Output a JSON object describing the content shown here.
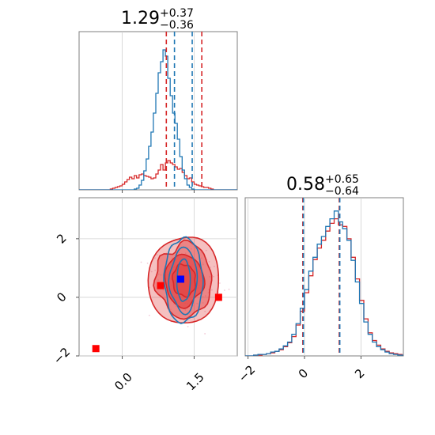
{
  "chart_data": [
    {
      "type": "histogram",
      "panel": "top-left (parameter 1 marginal)",
      "title": {
        "value": "1.29",
        "plus": "+0.37",
        "minus": "−0.36"
      },
      "xlim": [
        -0.9,
        2.4
      ],
      "bins": {
        "start": -0.9,
        "width": 0.05
      },
      "series": [
        {
          "color": "#d62728",
          "counts": [
            0,
            0,
            0,
            0,
            0,
            0,
            0,
            0,
            0,
            0,
            0,
            0,
            0,
            1,
            2,
            3,
            4,
            5,
            7,
            10,
            13,
            16,
            14,
            18,
            15,
            19,
            20,
            18,
            17,
            16,
            14,
            15,
            20,
            25,
            32,
            25,
            34,
            37,
            34,
            32,
            29,
            26,
            27,
            22,
            18,
            14,
            15,
            10,
            7,
            6,
            5,
            4,
            3,
            3,
            2,
            1,
            0,
            0,
            0,
            0,
            0,
            0,
            0,
            0,
            0,
            0,
            0
          ],
          "interval_lines": [
            0.92,
            1.66
          ]
        },
        {
          "color": "#1f77b4",
          "counts": [
            0,
            0,
            0,
            0,
            0,
            0,
            0,
            0,
            0,
            0,
            0,
            0,
            0,
            0,
            0,
            0,
            0,
            0,
            0,
            0,
            0,
            0,
            0,
            1,
            2,
            6,
            12,
            24,
            39,
            55,
            73,
            97,
            122,
            148,
            162,
            177,
            169,
            141,
            119,
            97,
            84,
            64,
            42,
            25,
            14,
            6,
            3,
            1,
            0,
            0,
            0,
            0,
            0,
            0,
            0,
            0,
            0,
            0,
            0,
            0,
            0,
            0,
            0,
            0,
            0,
            0,
            0
          ],
          "interval_lines": [
            1.09,
            1.46
          ]
        }
      ],
      "ymax": 190
    },
    {
      "type": "scatter",
      "panel": "bottom-left (joint 2D contours)",
      "xlim": [
        -0.9,
        2.4
      ],
      "ylim": [
        -2.0,
        3.4
      ],
      "x_ticks": [
        {
          "value": 0.0,
          "label": "0.0"
        },
        {
          "value": 1.5,
          "label": "1.5"
        }
      ],
      "y_ticks": [
        {
          "value": -2,
          "label": "−2"
        },
        {
          "value": 0,
          "label": "0"
        },
        {
          "value": 2,
          "label": "2"
        }
      ],
      "red_contours": {
        "color": "#d62728",
        "fill": "#e34a4a",
        "center": [
          1.29,
          0.58
        ],
        "levels": [
          {
            "rx": 0.72,
            "ry": 1.55,
            "opacity": 0.35
          },
          {
            "rx": 0.58,
            "ry": 1.25,
            "opacity": 0.5
          },
          {
            "rx": 0.4,
            "ry": 0.88,
            "opacity": 0.75
          },
          {
            "rx": 0.24,
            "ry": 0.55,
            "opacity": 0.95
          }
        ]
      },
      "blue_contours": {
        "color": "#1f77b4",
        "center": [
          1.28,
          0.58
        ],
        "levels": [
          {
            "rx": 0.4,
            "ry": 1.45
          },
          {
            "rx": 0.28,
            "ry": 1.1
          },
          {
            "rx": 0.14,
            "ry": 0.72
          }
        ]
      },
      "markers": [
        {
          "x": 1.22,
          "y": 0.62,
          "color": "#0000ff"
        },
        {
          "x": 0.8,
          "y": 0.4,
          "color": "#ff0000"
        },
        {
          "x": 2.01,
          "y": 0.0,
          "color": "#ff0000"
        },
        {
          "x": -0.55,
          "y": -1.75,
          "color": "#ff0000"
        }
      ]
    },
    {
      "type": "histogram",
      "panel": "bottom-right (parameter 2 marginal)",
      "title": {
        "value": "0.58",
        "plus": "+0.65",
        "minus": "−0.64"
      },
      "xlim": [
        -2.1,
        3.5
      ],
      "x_ticks": [
        {
          "value": -2,
          "label": "−2"
        },
        {
          "value": 0,
          "label": "0"
        },
        {
          "value": 2,
          "label": "2"
        }
      ],
      "bins": {
        "start": -2.1,
        "width": 0.15
      },
      "series": [
        {
          "color": "#d62728",
          "counts": [
            0,
            0,
            1,
            1,
            2,
            3,
            4,
            6,
            8,
            12,
            17,
            25,
            40,
            58,
            82,
            104,
            125,
            140,
            150,
            162,
            172,
            178,
            170,
            168,
            152,
            128,
            100,
            72,
            48,
            30,
            20,
            14,
            9,
            6,
            4,
            3,
            2,
            1,
            0
          ],
          "interval_lines": [
            -0.06,
            1.23
          ]
        },
        {
          "color": "#1f77b4",
          "counts": [
            0,
            0,
            1,
            2,
            2,
            3,
            5,
            6,
            9,
            13,
            18,
            28,
            42,
            62,
            86,
            110,
            128,
            145,
            155,
            168,
            178,
            188,
            174,
            165,
            150,
            124,
            96,
            68,
            44,
            28,
            18,
            12,
            8,
            5,
            3,
            2,
            1,
            1,
            0
          ],
          "interval_lines": [
            -0.04,
            1.25
          ]
        }
      ],
      "ymax": 195
    }
  ]
}
